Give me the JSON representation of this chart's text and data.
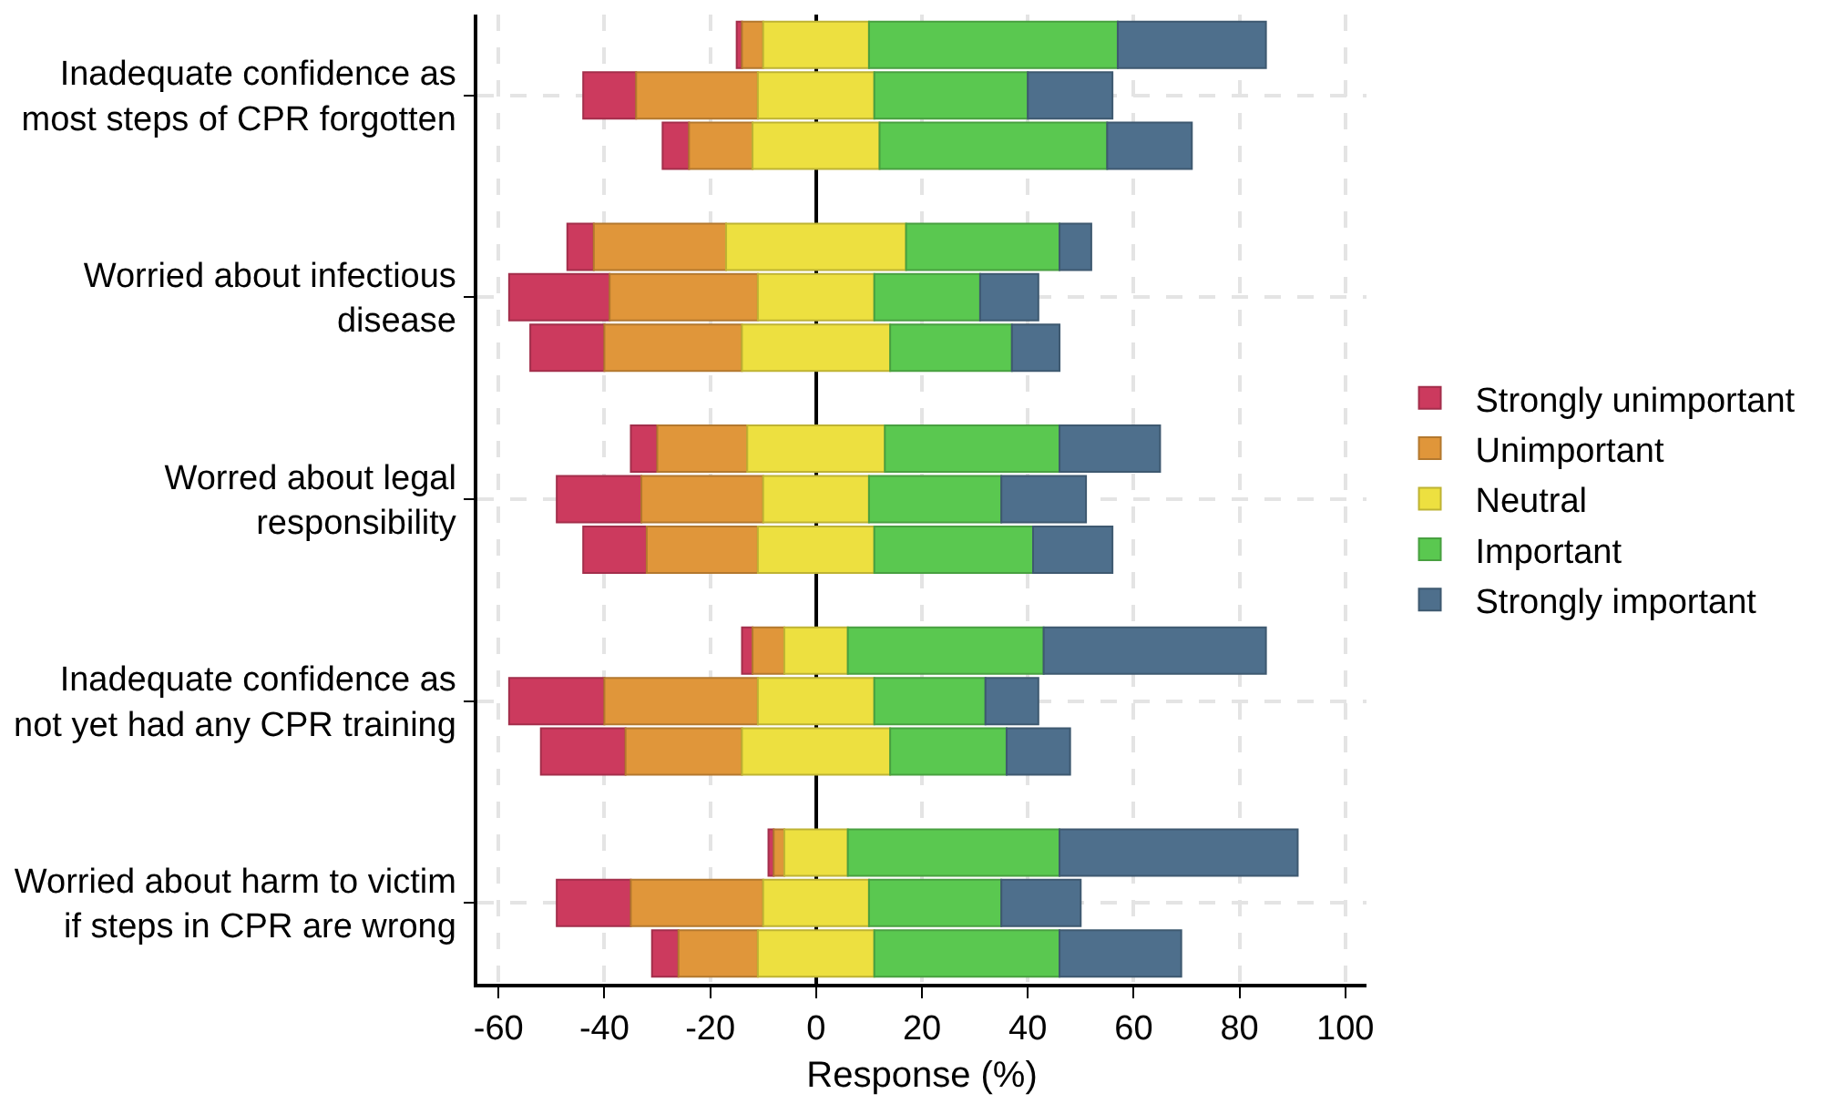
{
  "chart_data": {
    "type": "bar",
    "orientation": "horizontal",
    "xlabel": "Response (%)",
    "categories": [
      null,
      "Inadequate confidence as\nmost steps of CPR forgotten",
      null,
      null,
      null,
      "Worried about infectious\ndisease",
      null,
      null,
      null,
      "Worred about legal\nresponsibility",
      null,
      null,
      null,
      "Inadequate confidence as\nnot yet had any CPR training",
      null,
      null,
      null,
      "Worried about harm to victim\nif steps in CPR are wrong",
      null
    ],
    "series": [
      {
        "name": "Strongly unimportant",
        "color": "#cc3a5e",
        "base": [
          -15,
          -44,
          -29,
          null,
          -47,
          -58,
          -54,
          null,
          -35,
          -49,
          -44,
          null,
          -14,
          -58,
          -52,
          null,
          -9,
          -49,
          -31
        ],
        "values": [
          1,
          10,
          5,
          null,
          5,
          19,
          14,
          null,
          5,
          16,
          12,
          null,
          2,
          18,
          16,
          null,
          1,
          14,
          5
        ]
      },
      {
        "name": "Unimportant",
        "color": "#e0963a",
        "base": [
          -14,
          -34,
          -24,
          null,
          -42,
          -39,
          -40,
          null,
          -30,
          -33,
          -32,
          null,
          -12,
          -40,
          -36,
          null,
          -8,
          -35,
          -26
        ],
        "values": [
          4,
          23,
          12,
          null,
          25,
          28,
          26,
          null,
          17,
          23,
          21,
          null,
          6,
          29,
          22,
          null,
          2,
          25,
          15
        ]
      },
      {
        "name": "Neutral",
        "color": "#ede040",
        "base": [
          -10,
          -11,
          -12,
          null,
          -17,
          -11,
          -14,
          null,
          -13,
          -10,
          -11,
          null,
          -6,
          -11,
          -14,
          null,
          -6,
          -10,
          -11
        ],
        "values": [
          20,
          22,
          24,
          null,
          34,
          22,
          28,
          null,
          26,
          20,
          22,
          null,
          12,
          22,
          28,
          null,
          12,
          20,
          22
        ]
      },
      {
        "name": "Important",
        "color": "#5ac850",
        "base": [
          10,
          11,
          12,
          null,
          17,
          11,
          14,
          null,
          13,
          10,
          11,
          null,
          6,
          11,
          14,
          null,
          6,
          10,
          11
        ],
        "values": [
          47,
          29,
          43,
          null,
          29,
          20,
          23,
          null,
          33,
          25,
          30,
          null,
          37,
          21,
          22,
          null,
          40,
          25,
          35
        ]
      },
      {
        "name": "Strongly important",
        "color": "#4e6f8c",
        "base": [
          57,
          40,
          55,
          null,
          46,
          31,
          37,
          null,
          46,
          35,
          41,
          null,
          43,
          32,
          36,
          null,
          46,
          35,
          46
        ],
        "values": [
          28,
          16,
          16,
          null,
          6,
          11,
          9,
          null,
          19,
          16,
          15,
          null,
          42,
          10,
          12,
          null,
          45,
          15,
          23
        ]
      }
    ],
    "xlim": [
      -64,
      104
    ],
    "xticks": [
      -60,
      -40,
      -20,
      0,
      20,
      40,
      60,
      80,
      100
    ],
    "grid": true,
    "legend": "right"
  }
}
